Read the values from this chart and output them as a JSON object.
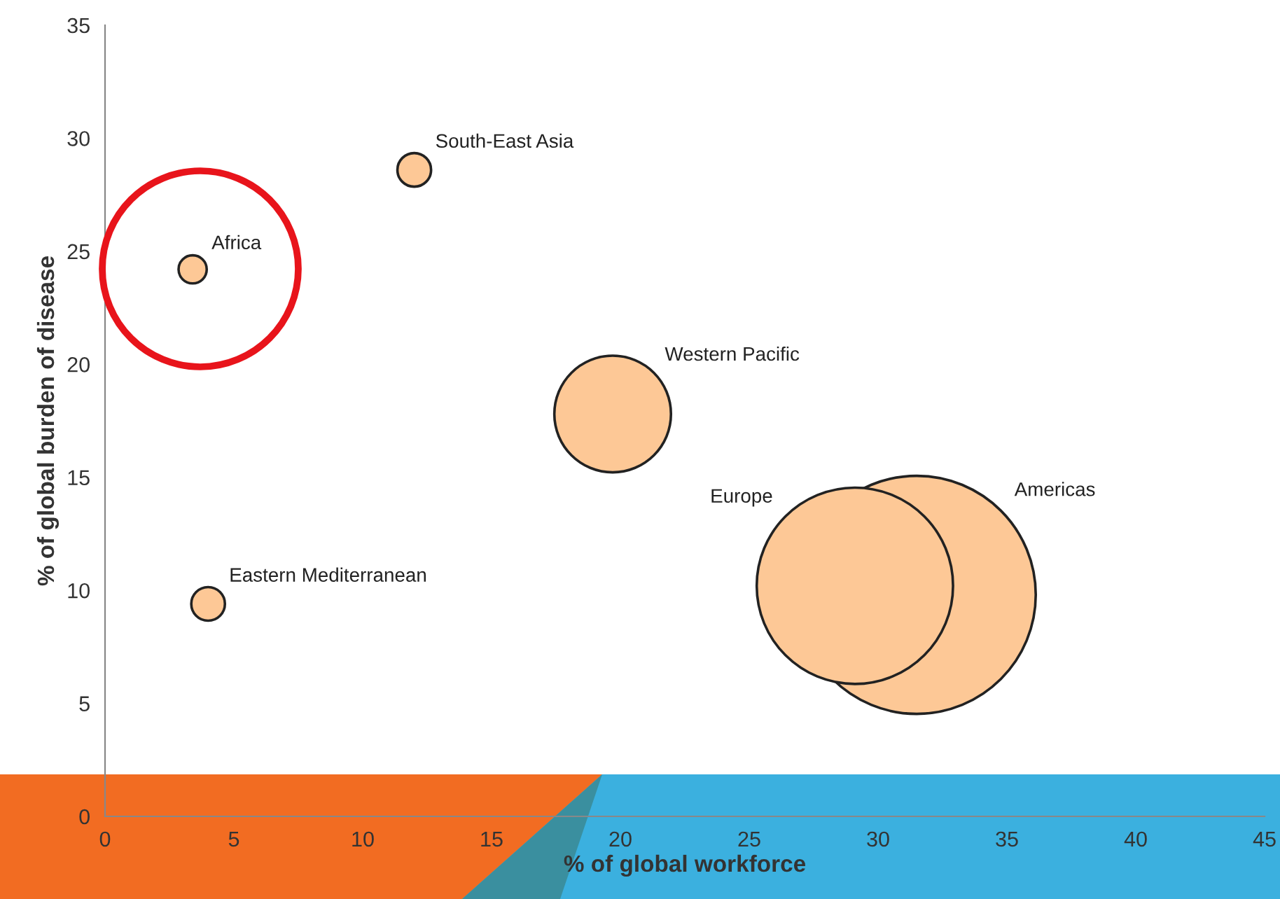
{
  "chart_data": {
    "type": "bubble",
    "xlabel": "% of global workforce",
    "ylabel": "% of global burden of disease",
    "xlim": [
      0,
      45
    ],
    "xticks": [
      0,
      5,
      10,
      15,
      20,
      25,
      30,
      35,
      40,
      45
    ],
    "ylim": [
      0,
      35
    ],
    "yticks": [
      0,
      5,
      10,
      15,
      20,
      25,
      30,
      35
    ],
    "grid": false,
    "legend": false,
    "series": [
      {
        "name": "Americas",
        "color": "#fdc896",
        "x": [
          31.5
        ],
        "values": [
          9.8
        ],
        "sizes": [
          1
        ]
      },
      {
        "name": "Europe",
        "color": "#fdc896",
        "x": [
          29.1
        ],
        "values": [
          10.2
        ],
        "sizes": [
          0.68
        ]
      },
      {
        "name": "Western Pacific",
        "color": "#fdc896",
        "x": [
          19.7
        ],
        "values": [
          17.8
        ],
        "sizes": [
          0.24
        ]
      },
      {
        "name": "South-East Asia",
        "color": "#fdc896",
        "x": [
          12.0
        ],
        "values": [
          28.6
        ],
        "sizes": [
          0.02
        ]
      },
      {
        "name": "Eastern Mediterranean",
        "color": "#fdc896",
        "x": [
          4.0
        ],
        "values": [
          9.4
        ],
        "sizes": [
          0.02
        ]
      },
      {
        "name": "Africa",
        "color": "#fdc896",
        "x": [
          3.4
        ],
        "values": [
          24.2
        ],
        "sizes": [
          0.014
        ]
      }
    ]
  }
}
